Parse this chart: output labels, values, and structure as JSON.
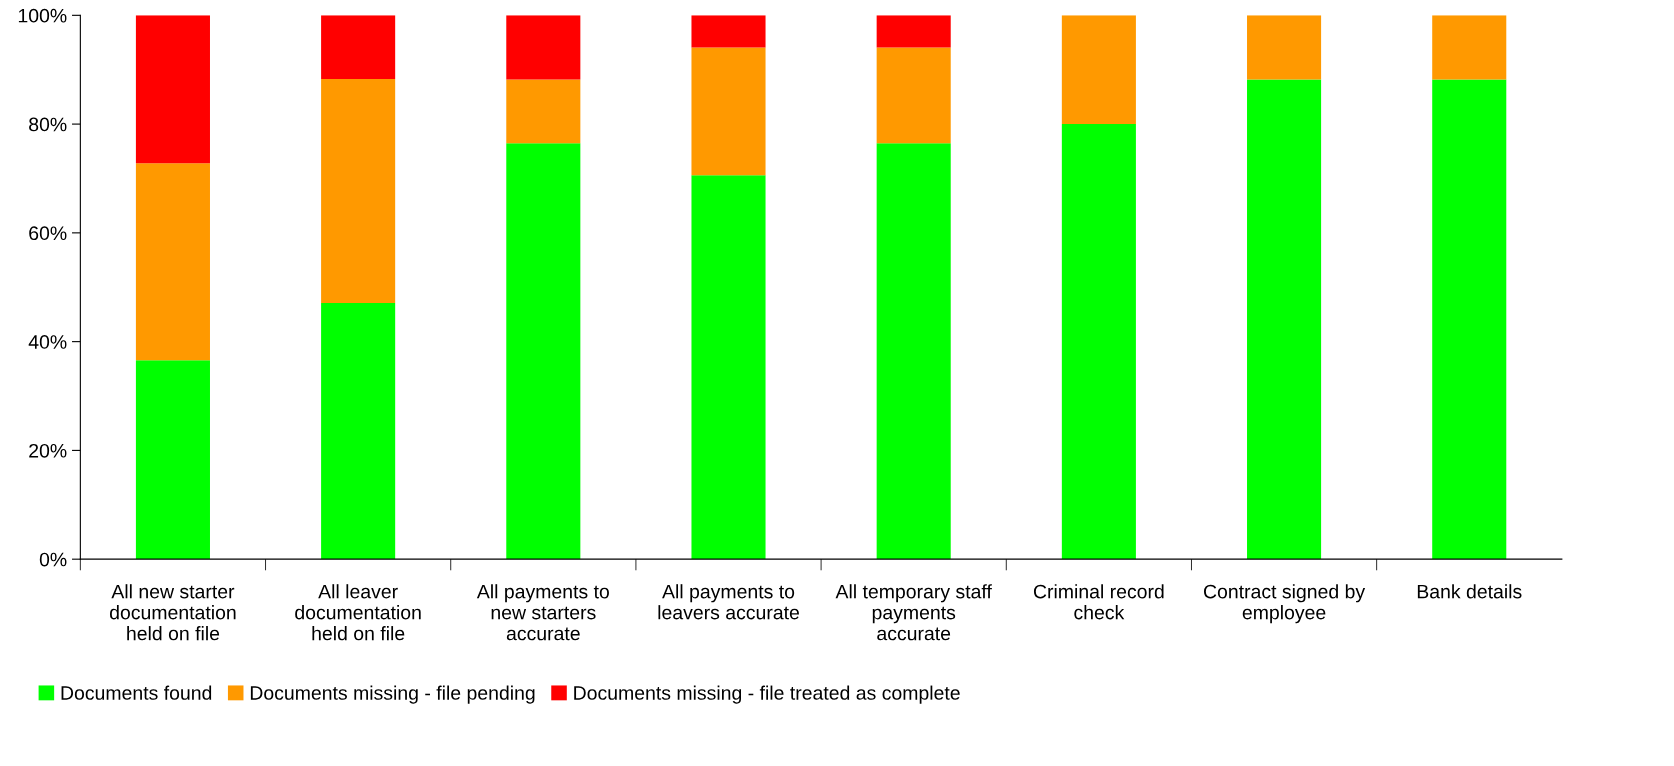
{
  "chart_data": {
    "type": "bar",
    "stacked": true,
    "categories": [
      "All new starter\ndocumentation\nheld on file",
      "All leaver\ndocumentation\nheld on file",
      "All payments to\nnew starters\naccurate",
      "All payments to\nleavers accurate",
      "All temporary staff\npayments\naccurate",
      "Criminal record\ncheck",
      "Contract signed by\nemployee",
      "Bank details"
    ],
    "series": [
      {
        "name": "Documents found",
        "color": "#00ff00",
        "values": [
          36.6,
          47.1,
          76.5,
          70.6,
          76.5,
          80,
          88.2,
          88.2
        ]
      },
      {
        "name": "Documents missing - file pending",
        "color": "#ff9900",
        "values": [
          36.2,
          41.2,
          11.7,
          23.5,
          17.6,
          20,
          11.8,
          11.8
        ]
      },
      {
        "name": "Documents missing - file treated as complete",
        "color": "#ff0000",
        "values": [
          27.2,
          11.7,
          11.8,
          5.9,
          5.9,
          0,
          0,
          0
        ]
      }
    ],
    "ylim": [
      0,
      100
    ],
    "yticks": [
      {
        "value": 0,
        "label": "0%"
      },
      {
        "value": 20,
        "label": "20%"
      },
      {
        "value": 40,
        "label": "40%"
      },
      {
        "value": 60,
        "label": "60%"
      },
      {
        "value": 80,
        "label": "80%"
      },
      {
        "value": 100,
        "label": "100%"
      }
    ],
    "grid": false,
    "legend": "bottom left"
  }
}
